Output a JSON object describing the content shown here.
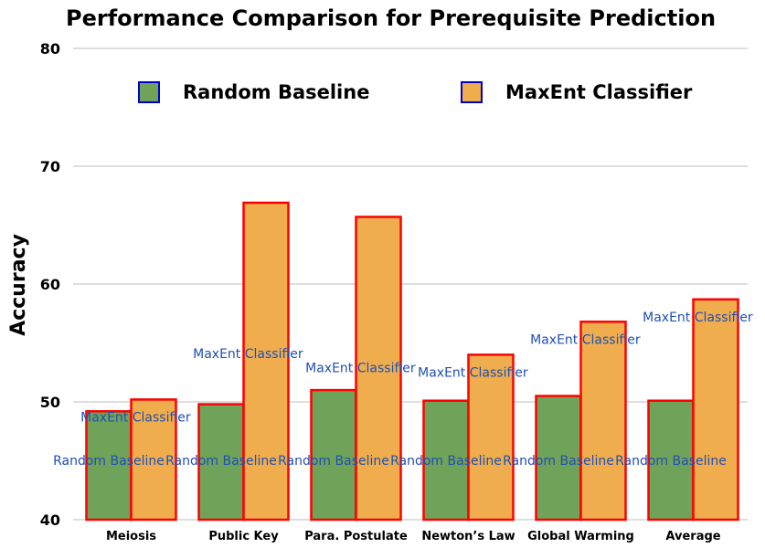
{
  "chart_data": {
    "type": "bar",
    "title": "Performance Comparison for Prerequisite Prediction",
    "xlabel": "",
    "ylabel": "Accuracy",
    "ylim": [
      40,
      80
    ],
    "yticks": [
      40,
      50,
      60,
      70,
      80
    ],
    "grid": true,
    "legend_position": "top",
    "categories": [
      "Meiosis",
      "Public Key",
      "Para. Postulate",
      "Newton’s Law",
      "Global Warming",
      "Average"
    ],
    "series": [
      {
        "name": "Random Baseline",
        "color": "#6fa35a",
        "values": [
          49.2,
          49.8,
          51.0,
          50.1,
          50.5,
          50.1
        ]
      },
      {
        "name": "MaxEnt Classifier",
        "color": "#f0ad4e",
        "values": [
          50.2,
          66.9,
          65.7,
          54.0,
          56.8,
          58.7
        ]
      }
    ],
    "bar_border_color": "#ff0000",
    "legend_border_color": "#0000cc",
    "data_label_color": "#1f4fb3"
  }
}
